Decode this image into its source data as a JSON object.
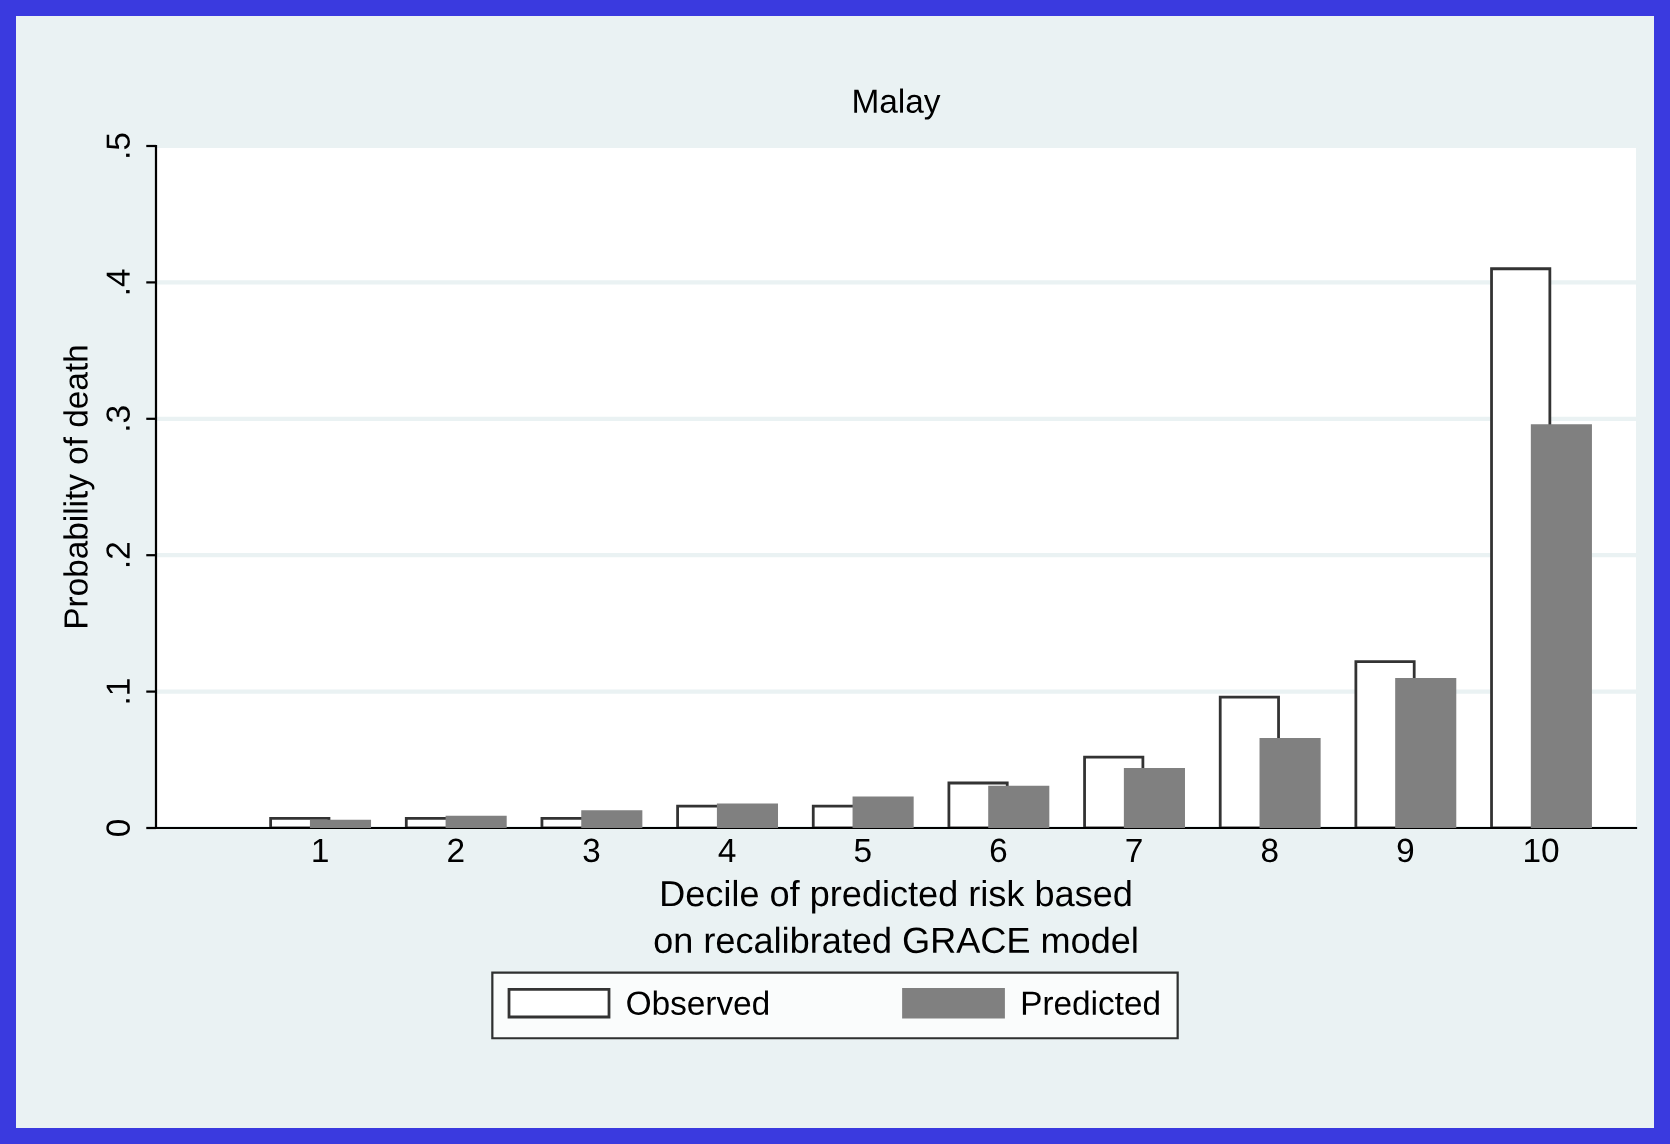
{
  "chart_data": {
    "type": "bar",
    "title": "Malay",
    "xlabel": "Decile of predicted risk based\non recalibrated GRACE model",
    "ylabel": "Probability of death",
    "categories": [
      "1",
      "2",
      "3",
      "4",
      "5",
      "6",
      "7",
      "8",
      "9",
      "10"
    ],
    "series": [
      {
        "name": "Observed",
        "color": "#ffffff",
        "values": [
          0.007,
          0.007,
          0.007,
          0.016,
          0.016,
          0.033,
          0.052,
          0.096,
          0.122,
          0.41
        ]
      },
      {
        "name": "Predicted",
        "color": "#808080",
        "values": [
          0.005,
          0.008,
          0.012,
          0.017,
          0.022,
          0.03,
          0.043,
          0.065,
          0.109,
          0.295
        ]
      }
    ],
    "ylim": [
      0,
      0.5
    ],
    "yticks": [
      {
        "value": 0,
        "label": "0"
      },
      {
        "value": 0.1,
        "label": ".1"
      },
      {
        "value": 0.2,
        "label": ".2"
      },
      {
        "value": 0.3,
        "label": ".3"
      },
      {
        "value": 0.4,
        "label": ".4"
      },
      {
        "value": 0.5,
        "label": ".5"
      }
    ],
    "grid": "y",
    "legend": "bottom"
  }
}
